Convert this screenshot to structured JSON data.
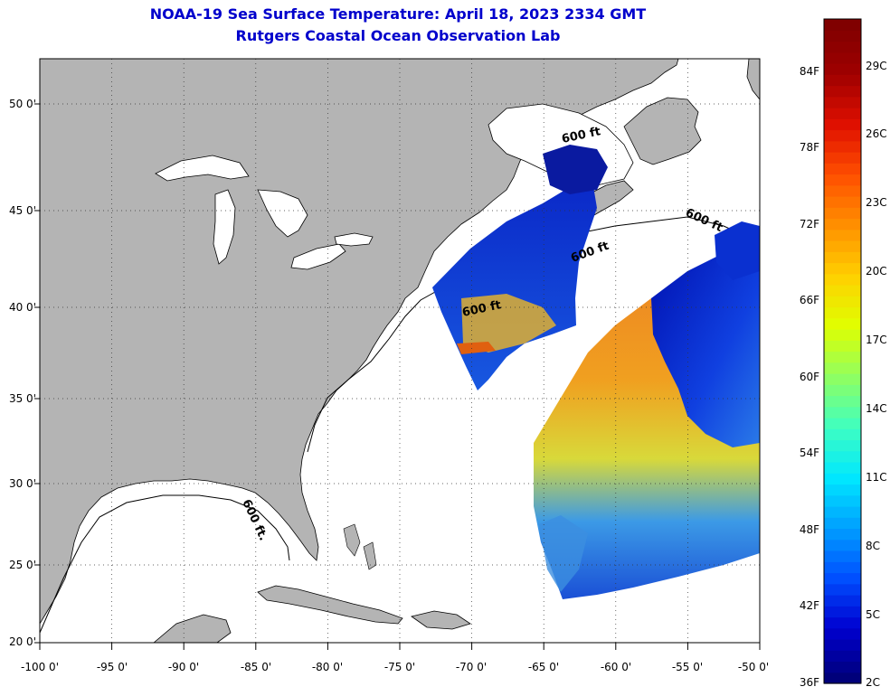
{
  "title": {
    "line1": "NOAA-19 Sea Surface Temperature:  April 18, 2023 2334 GMT",
    "line2": "Rutgers Coastal Ocean Observation Lab"
  },
  "axes": {
    "lat_ticks": [
      "50 0'",
      "45 0'",
      "40 0'",
      "35 0'",
      "30 0'",
      "25 0'",
      "20 0'"
    ],
    "lon_ticks": [
      "-100 0'",
      "-95 0'",
      "-90 0'",
      "-85 0'",
      "-80 0'",
      "-75 0'",
      "-70 0'",
      "-65 0'",
      "-60 0'",
      "-55 0'",
      "-50 0'"
    ],
    "lat_values": [
      50,
      45,
      40,
      35,
      30,
      25,
      20
    ],
    "lon_values": [
      -100,
      -95,
      -90,
      -85,
      -80,
      -75,
      -70,
      -65,
      -60,
      -55,
      -50
    ],
    "lon_range": [
      -100,
      -50
    ],
    "lat_range": [
      20,
      52.5
    ]
  },
  "contour_labels": [
    "600 ft.",
    "600 ft",
    "600 ft",
    "600 ft",
    "600 ft"
  ],
  "colorbar": {
    "fahrenheit": [
      "84F",
      "78F",
      "72F",
      "66F",
      "60F",
      "54F",
      "48F",
      "42F",
      "36F"
    ],
    "celsius": [
      "29C",
      "26C",
      "23C",
      "20C",
      "17C",
      "14C",
      "11C",
      "8C",
      "5C",
      "2C"
    ],
    "colors": [
      "#00007a",
      "#0000d0",
      "#0050ff",
      "#00a0ff",
      "#00e8ff",
      "#40ffc0",
      "#90ff60",
      "#e0ff00",
      "#ffd000",
      "#ff9000",
      "#ff5000",
      "#e01000",
      "#a00000",
      "#800000"
    ]
  },
  "colors": {
    "land": "#b4b4b4",
    "title": "#0000cc",
    "grid": "#000000"
  }
}
